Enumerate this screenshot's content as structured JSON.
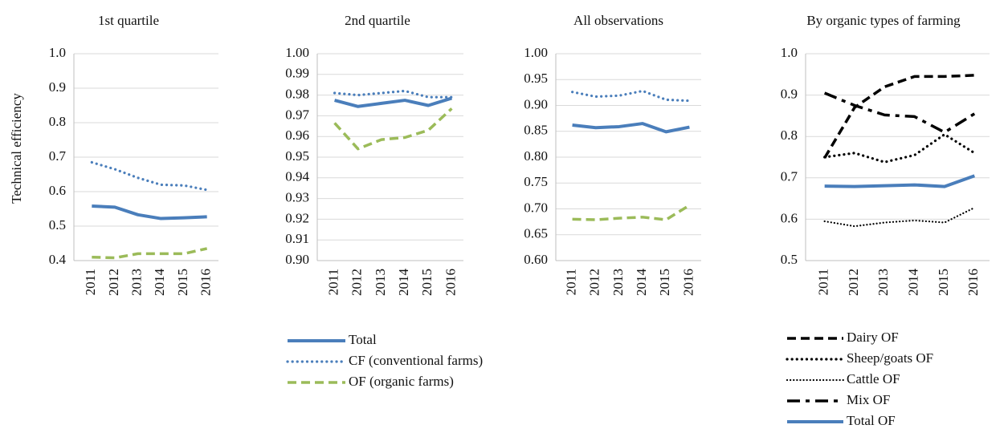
{
  "chart_data": [
    {
      "type": "line",
      "title": "1st quartile",
      "y_label": "Technical efficiency",
      "categories": [
        "2011",
        "2012",
        "2013",
        "2014",
        "2015",
        "2016"
      ],
      "ylim": [
        0.4,
        1.0
      ],
      "yticks": [
        0.4,
        0.5,
        0.6,
        0.7,
        0.8,
        0.9,
        {
          "value": 1.0,
          "label": "1.0"
        }
      ],
      "grid": true,
      "series": [
        {
          "color": "#4a7ebb",
          "dash": "solid",
          "values": [
            0.558,
            0.555,
            0.533,
            0.522,
            0.524,
            0.527
          ]
        },
        {
          "color": "#4a7ebb",
          "dash": "dotted",
          "values": [
            0.685,
            0.665,
            0.64,
            0.62,
            0.618,
            0.605
          ]
        },
        {
          "color": "#9bbb59",
          "dash": "dashed",
          "values": [
            0.41,
            0.408,
            0.42,
            0.42,
            0.42,
            0.435
          ]
        }
      ]
    },
    {
      "type": "line",
      "title": "2nd quartile",
      "categories": [
        "2011",
        "2012",
        "2013",
        "2014",
        "2015",
        "2016"
      ],
      "ylim": [
        0.9,
        1.0
      ],
      "yticks": [
        {
          "value": 0.9,
          "label": "0.90"
        },
        0.91,
        0.92,
        0.93,
        0.94,
        0.95,
        0.96,
        0.97,
        0.98,
        0.99,
        {
          "value": 1.0,
          "label": "1.00"
        }
      ],
      "grid": true,
      "series": [
        {
          "name": "Total",
          "color": "#4a7ebb",
          "dash": "solid",
          "values": [
            0.9775,
            0.9745,
            0.976,
            0.9775,
            0.975,
            0.9785
          ]
        },
        {
          "name": "CF (conventional farms)",
          "color": "#4a7ebb",
          "dash": "dotted",
          "values": [
            0.981,
            0.98,
            0.981,
            0.982,
            0.979,
            0.979
          ]
        },
        {
          "name": "OF (organic farms)",
          "color": "#9bbb59",
          "dash": "dashed",
          "values": [
            0.9665,
            0.954,
            0.9585,
            0.9595,
            0.963,
            0.9735
          ]
        }
      ]
    },
    {
      "type": "line",
      "title": "All observations",
      "categories": [
        "2011",
        "2012",
        "2013",
        "2014",
        "2015",
        "2016"
      ],
      "ylim": [
        0.6,
        1.0
      ],
      "yticks": [
        {
          "value": 0.6,
          "label": "0.60"
        },
        0.65,
        {
          "value": 0.7,
          "label": "0.70"
        },
        0.75,
        {
          "value": 0.8,
          "label": "0.80"
        },
        0.85,
        {
          "value": 0.9,
          "label": "0.90"
        },
        0.95,
        {
          "value": 1.0,
          "label": "1.00"
        }
      ],
      "grid": true,
      "series": [
        {
          "color": "#4a7ebb",
          "dash": "solid",
          "values": [
            0.862,
            0.857,
            0.859,
            0.865,
            0.849,
            0.858
          ]
        },
        {
          "color": "#4a7ebb",
          "dash": "dotted",
          "values": [
            0.926,
            0.917,
            0.919,
            0.928,
            0.911,
            0.909
          ]
        },
        {
          "color": "#9bbb59",
          "dash": "dashed",
          "values": [
            0.68,
            0.679,
            0.682,
            0.684,
            0.679,
            0.707
          ]
        }
      ]
    },
    {
      "type": "line",
      "title": "By organic types of farming",
      "categories": [
        "2011",
        "2012",
        "2013",
        "2014",
        "2015",
        "2016"
      ],
      "ylim": [
        0.5,
        1.0
      ],
      "yticks": [
        0.5,
        0.6,
        0.7,
        0.8,
        0.9,
        {
          "value": 1.0,
          "label": "1.0"
        }
      ],
      "grid": true,
      "series": [
        {
          "name": "Dairy OF",
          "color": "#000000",
          "dash": "dashed",
          "values": [
            0.748,
            0.87,
            0.92,
            0.945,
            0.945,
            0.948
          ]
        },
        {
          "name": "Sheep/goats  OF",
          "color": "#000000",
          "dash": "dotted",
          "values": [
            0.75,
            0.76,
            0.738,
            0.755,
            0.805,
            0.76
          ]
        },
        {
          "name": "Cattle OF",
          "color": "#000000",
          "dash": "fine-dotted",
          "values": [
            0.595,
            0.583,
            0.592,
            0.597,
            0.592,
            0.628
          ]
        },
        {
          "name": "Mix OF",
          "color": "#000000",
          "dash": "dash-dot",
          "values": [
            0.905,
            0.875,
            0.852,
            0.848,
            0.81,
            0.855
          ]
        },
        {
          "name": "Total OF",
          "color": "#4a7ebb",
          "dash": "solid",
          "values": [
            0.68,
            0.679,
            0.681,
            0.683,
            0.679,
            0.705
          ]
        }
      ]
    }
  ]
}
